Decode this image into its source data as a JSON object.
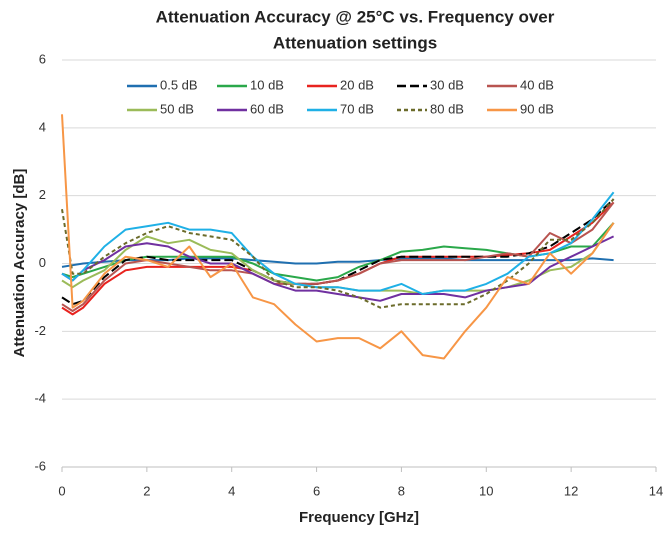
{
  "chart_data": {
    "type": "line",
    "title": [
      "Attenuation Accuracy @ 25°C vs. Frequency over",
      "Attenuation settings"
    ],
    "x_label": "Frequency [GHz]",
    "y_label": "Attenuation Accuracy [dB]",
    "x": [
      0,
      0.25,
      0.5,
      1,
      1.5,
      2,
      2.5,
      3,
      3.5,
      4,
      4.5,
      5,
      5.5,
      6,
      6.5,
      7,
      7.5,
      8,
      8.5,
      9,
      9.5,
      10,
      10.5,
      11,
      11.5,
      12,
      12.5,
      13
    ],
    "series": [
      {
        "name": "0.5 dB",
        "color": "#1f6fb0",
        "dash": "solid",
        "values": [
          -0.1,
          -0.05,
          0,
          0.05,
          0.1,
          0.1,
          0.1,
          0.15,
          0.15,
          0.15,
          0.1,
          0.05,
          0,
          0,
          0.05,
          0.05,
          0.1,
          0.15,
          0.15,
          0.15,
          0.1,
          0.1,
          0.1,
          0.1,
          0.1,
          0.1,
          0.15,
          0.1
        ]
      },
      {
        "name": "10 dB",
        "color": "#2aa84a",
        "dash": "solid",
        "values": [
          -0.3,
          -0.4,
          -0.3,
          -0.1,
          0.1,
          0.2,
          0.2,
          0.2,
          0.2,
          0.2,
          0,
          -0.3,
          -0.4,
          -0.5,
          -0.4,
          -0.1,
          0.1,
          0.35,
          0.4,
          0.5,
          0.45,
          0.4,
          0.3,
          0.2,
          0.3,
          0.5,
          0.5,
          1.2
        ]
      },
      {
        "name": "20 dB",
        "color": "#e8231f",
        "dash": "solid",
        "values": [
          -1.3,
          -1.5,
          -1.3,
          -0.6,
          -0.2,
          -0.1,
          -0.1,
          -0.1,
          -0.1,
          -0.1,
          -0.2,
          -0.5,
          -0.6,
          -0.6,
          -0.5,
          -0.3,
          0,
          0.2,
          0.2,
          0.2,
          0.2,
          0.2,
          0.25,
          0.3,
          0.4,
          0.8,
          1.2,
          1.8
        ]
      },
      {
        "name": "30 dB",
        "color": "#000000",
        "dash": "dashed",
        "values": [
          -1.0,
          -1.2,
          -1.1,
          -0.4,
          0.1,
          0.2,
          0.1,
          0.1,
          0.1,
          0.1,
          -0.2,
          -0.5,
          -0.6,
          -0.6,
          -0.5,
          -0.2,
          0.1,
          0.2,
          0.2,
          0.2,
          0.2,
          0.2,
          0.2,
          0.3,
          0.5,
          0.9,
          1.3,
          1.9
        ]
      },
      {
        "name": "40 dB",
        "color": "#b85450",
        "dash": "solid",
        "values": [
          -1.2,
          -1.4,
          -1.2,
          -0.5,
          0,
          0.1,
          0,
          -0.1,
          -0.2,
          -0.2,
          -0.3,
          -0.6,
          -0.6,
          -0.6,
          -0.5,
          -0.3,
          0,
          0.1,
          0.1,
          0.1,
          0.1,
          0.2,
          0.3,
          0.2,
          0.9,
          0.6,
          1.0,
          1.8
        ]
      },
      {
        "name": "50 dB",
        "color": "#9bbb59",
        "dash": "solid",
        "values": [
          -0.5,
          -0.7,
          -0.5,
          -0.2,
          0.4,
          0.8,
          0.6,
          0.7,
          0.4,
          0.3,
          -0.2,
          -0.5,
          -0.6,
          -0.7,
          -0.7,
          -0.8,
          -0.8,
          -0.8,
          -0.9,
          -0.8,
          -0.8,
          -0.8,
          -0.7,
          -0.5,
          -0.2,
          -0.1,
          0.3,
          1.2
        ]
      },
      {
        "name": "60 dB",
        "color": "#7030a0",
        "dash": "solid",
        "values": [
          -0.3,
          -0.5,
          -0.2,
          0.1,
          0.5,
          0.6,
          0.5,
          0.2,
          0,
          0,
          -0.3,
          -0.6,
          -0.8,
          -0.8,
          -0.9,
          -1.0,
          -1.1,
          -0.9,
          -0.9,
          -0.9,
          -1.0,
          -0.8,
          -0.7,
          -0.6,
          -0.1,
          0.2,
          0.5,
          0.8
        ]
      },
      {
        "name": "70 dB",
        "color": "#1fb0e6",
        "dash": "solid",
        "values": [
          -0.3,
          -0.5,
          -0.2,
          0.5,
          1.0,
          1.1,
          1.2,
          1.0,
          1.0,
          0.9,
          0.2,
          -0.3,
          -0.6,
          -0.7,
          -0.7,
          -0.8,
          -0.8,
          -0.6,
          -0.9,
          -0.8,
          -0.8,
          -0.6,
          -0.3,
          0.2,
          0.3,
          0.6,
          1.3,
          2.1
        ]
      },
      {
        "name": "80 dB",
        "color": "#6b6b2a",
        "dash": "dotted",
        "values": [
          1.6,
          -0.3,
          -0.3,
          0.2,
          0.6,
          0.9,
          1.1,
          0.9,
          0.8,
          0.7,
          0.2,
          -0.5,
          -0.7,
          -0.7,
          -0.8,
          -1.0,
          -1.3,
          -1.2,
          -1.2,
          -1.2,
          -1.2,
          -0.9,
          -0.5,
          0,
          0.7,
          0.7,
          1.2,
          1.9
        ]
      },
      {
        "name": "90 dB",
        "color": "#f79646",
        "dash": "solid",
        "values": [
          4.4,
          -1.3,
          -1.1,
          -0.3,
          0.2,
          0.1,
          -0.1,
          0.5,
          -0.4,
          0,
          -1.0,
          -1.2,
          -1.8,
          -2.3,
          -2.2,
          -2.2,
          -2.5,
          -2.0,
          -2.7,
          -2.8,
          -2.0,
          -1.3,
          -0.4,
          -0.6,
          0.3,
          -0.3,
          0.3,
          1.2
        ]
      }
    ],
    "xlim": [
      0,
      14
    ],
    "xticks": [
      0,
      2,
      4,
      6,
      8,
      10,
      12,
      14
    ],
    "ylim": [
      -6,
      6
    ],
    "yticks": [
      -6,
      -4,
      -2,
      0,
      2,
      4,
      6
    ],
    "grid": true,
    "legend": "top"
  }
}
